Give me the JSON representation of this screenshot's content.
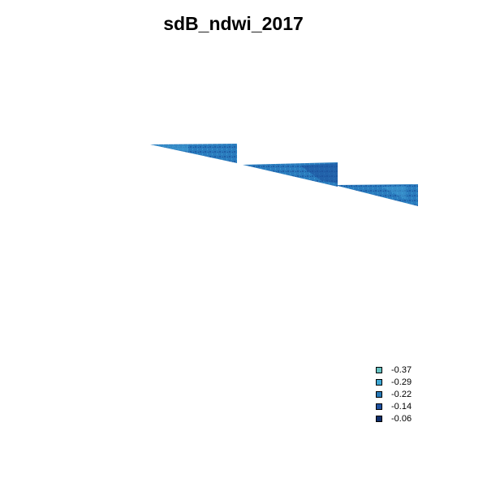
{
  "title": "sdB_ndwi_2017",
  "legend": {
    "items": [
      {
        "label": "-0.37",
        "color": "#66c2c2"
      },
      {
        "label": "-0.29",
        "color": "#3ea7d3"
      },
      {
        "label": "-0.22",
        "color": "#2779b8"
      },
      {
        "label": "-0.14",
        "color": "#1f51a0"
      },
      {
        "label": "-0.06",
        "color": "#0f2e6b"
      }
    ]
  },
  "map": {
    "base_color": "#2a7bbd",
    "dark_color": "#1c4f9a",
    "light_color": "#45a3d6"
  }
}
